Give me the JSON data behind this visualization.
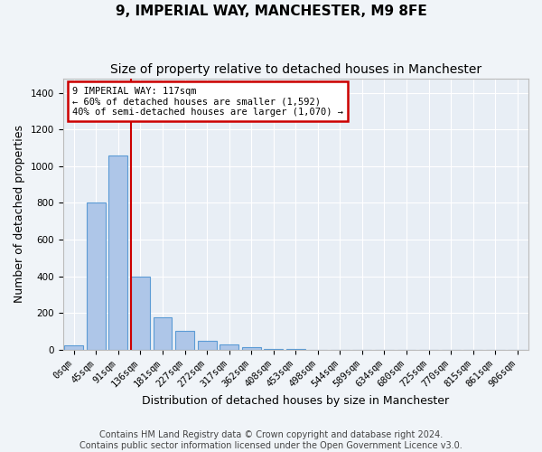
{
  "title": "9, IMPERIAL WAY, MANCHESTER, M9 8FE",
  "subtitle": "Size of property relative to detached houses in Manchester",
  "xlabel": "Distribution of detached houses by size in Manchester",
  "ylabel": "Number of detached properties",
  "footer_line1": "Contains HM Land Registry data © Crown copyright and database right 2024.",
  "footer_line2": "Contains public sector information licensed under the Open Government Licence v3.0.",
  "bin_labels": [
    "0sqm",
    "45sqm",
    "91sqm",
    "136sqm",
    "181sqm",
    "227sqm",
    "272sqm",
    "317sqm",
    "362sqm",
    "408sqm",
    "453sqm",
    "498sqm",
    "544sqm",
    "589sqm",
    "634sqm",
    "680sqm",
    "725sqm",
    "770sqm",
    "815sqm",
    "861sqm",
    "906sqm"
  ],
  "bar_values": [
    25,
    800,
    1060,
    400,
    175,
    100,
    50,
    30,
    15,
    5,
    2,
    1,
    0,
    0,
    0,
    0,
    0,
    0,
    0,
    0,
    0
  ],
  "bar_color": "#aec6e8",
  "bar_edge_color": "#5b9bd5",
  "bar_width": 0.85,
  "ylim": [
    0,
    1480
  ],
  "yticks": [
    0,
    200,
    400,
    600,
    800,
    1000,
    1200,
    1400
  ],
  "red_line_x": 2.58,
  "annotation_text": "9 IMPERIAL WAY: 117sqm\n← 60% of detached houses are smaller (1,592)\n40% of semi-detached houses are larger (1,070) →",
  "annotation_box_color": "#ffffff",
  "annotation_border_color": "#cc0000",
  "background_color": "#e8eef5",
  "grid_color": "#ffffff",
  "fig_bg_color": "#f0f4f8",
  "title_fontsize": 11,
  "subtitle_fontsize": 10,
  "axis_label_fontsize": 9,
  "tick_fontsize": 7.5,
  "annot_fontsize": 7.5,
  "footer_fontsize": 7
}
